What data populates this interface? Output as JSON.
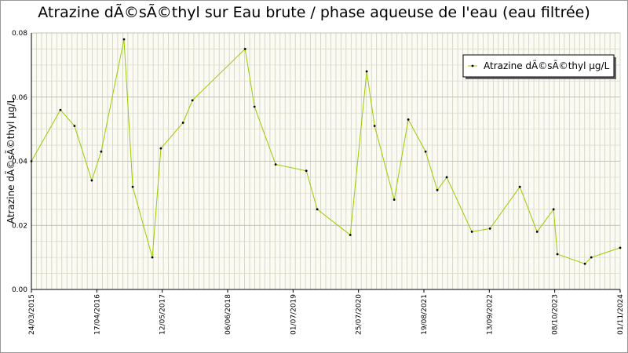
{
  "chart_data": {
    "type": "line",
    "title": "Atrazine dÃ©sÃ©thyl sur Eau brute / phase aqueuse de l'eau (eau filtrée)",
    "y_label": "Atrazine dÃ©sÃ©thyl µg/L",
    "x": [
      "24/03/2015",
      "13/09/2015",
      "06/12/2015",
      "18/03/2016",
      "13/05/2016",
      "26/09/2016",
      "17/11/2016",
      "14/03/2017",
      "04/05/2017",
      "13/09/2017",
      "08/11/2017",
      "18/09/2018",
      "13/11/2018",
      "19/03/2019",
      "18/09/2019",
      "22/11/2019",
      "06/06/2020",
      "12/09/2020",
      "29/10/2020",
      "23/02/2021",
      "18/05/2021",
      "29/08/2021",
      "07/11/2021",
      "02/01/2022",
      "01/06/2022",
      "17/09/2022",
      "14/03/2023",
      "25/06/2023",
      "01/10/2023",
      "24/10/2023",
      "05/04/2024",
      "13/05/2024",
      "01/11/2024"
    ],
    "series": [
      {
        "name": "Atrazine dÃ©sÃ©thyl µg/L",
        "color": "#99cc00",
        "values": [
          0.04,
          0.056,
          0.051,
          0.034,
          0.043,
          0.078,
          0.032,
          0.01,
          0.044,
          0.052,
          0.059,
          0.075,
          0.057,
          0.039,
          0.037,
          0.025,
          0.017,
          0.068,
          0.051,
          0.028,
          0.053,
          0.043,
          0.031,
          0.035,
          0.018,
          0.019,
          0.032,
          0.018,
          0.025,
          0.011,
          0.008,
          0.01,
          0.013
        ]
      }
    ],
    "xlim": [
      "24/03/2015",
      "01/11/2024"
    ],
    "xticks": [
      "24/03/2015",
      "17/04/2016",
      "12/05/2017",
      "06/06/2018",
      "01/07/2019",
      "25/07/2020",
      "19/08/2021",
      "13/09/2022",
      "08/10/2023",
      "01/11/2024"
    ],
    "ylim": [
      0,
      0.08
    ],
    "yticks": [
      {
        "value": 0,
        "label": "0.00"
      },
      0.02,
      0.04,
      0.06,
      0.08
    ],
    "grid": true,
    "legend": "upper right"
  }
}
